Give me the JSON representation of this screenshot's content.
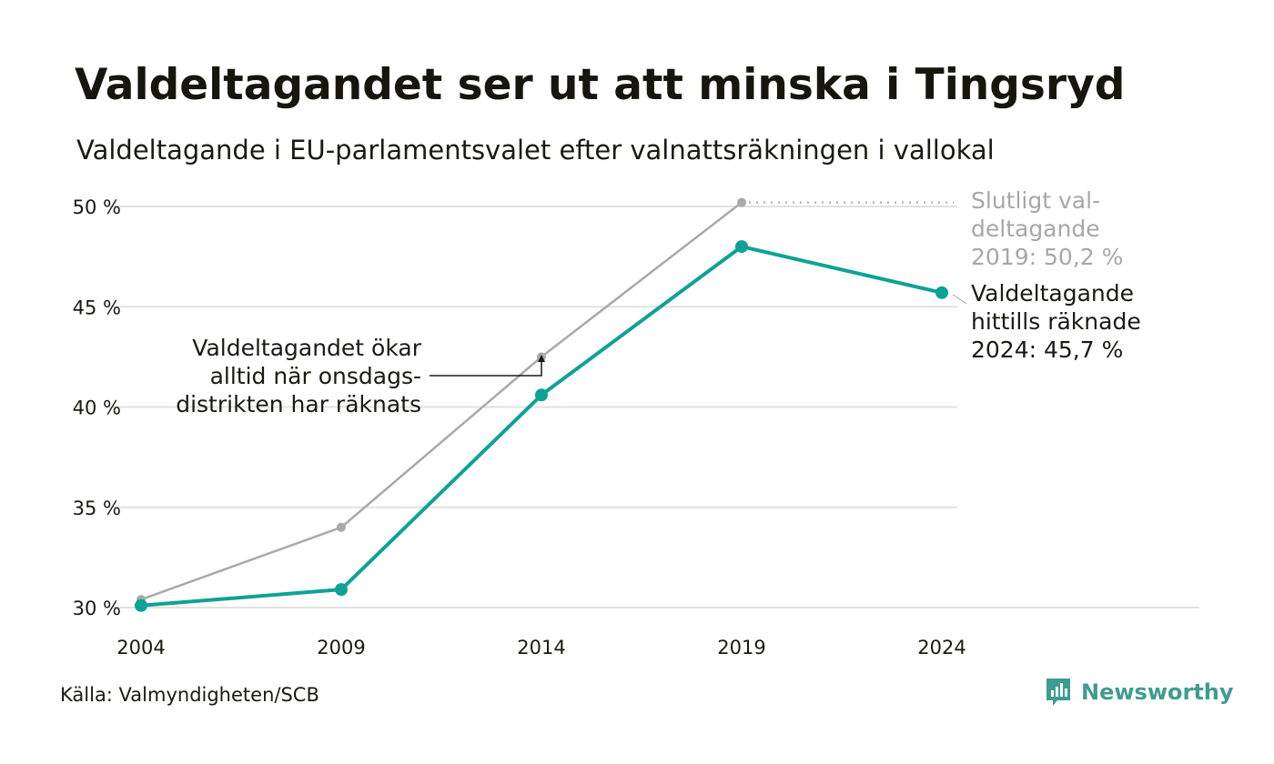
{
  "title": "Valdeltagandet ser ut att minska i Tingsryd",
  "subtitle": "Valdeltagande i EU-parlamentsvalet efter valnattsräkningen i vallokal",
  "source": "Källa: Valmyndigheten/SCB",
  "brand": "Newsworthy",
  "colors": {
    "accent": "#0ea297",
    "final_line": "#a9a9a9",
    "grid": "#e2e2e2",
    "text": "#1a1a14",
    "muted_text": "#a7a7a7",
    "brand": "#3f9c92"
  },
  "chart_data": {
    "type": "line",
    "x": [
      2004,
      2009,
      2014,
      2019,
      2024
    ],
    "x_tick_labels": [
      "2004",
      "2009",
      "2014",
      "2019",
      "2024"
    ],
    "ylim": [
      30,
      50
    ],
    "y_ticks": [
      30,
      35,
      40,
      45,
      50
    ],
    "y_tick_labels": [
      "30 %",
      "35 %",
      "40 %",
      "45 %",
      "50 %"
    ],
    "grid": true,
    "series": [
      {
        "key": "final",
        "color": "#a9a9a9",
        "values": [
          30.4,
          34.0,
          42.5,
          50.2,
          null
        ]
      },
      {
        "key": "counted",
        "color": "#0ea297",
        "values": [
          30.1,
          30.9,
          40.6,
          48.0,
          45.7
        ]
      }
    ],
    "annotations": {
      "final_2019": "Slutligt val-\ndeltagande\n2019: 50,2 %",
      "counted_2024": "Valdeltagande\nhittills räknade\n2024: 45,7 %",
      "increase_note": "Valdeltagandet ökar\nalltid när onsdags-\ndistrikten har räknats"
    }
  }
}
